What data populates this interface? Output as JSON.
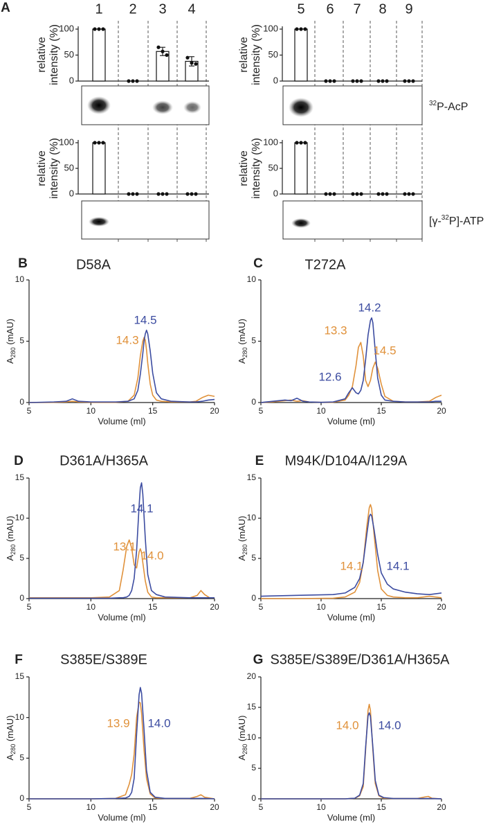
{
  "chart_data": [
    {
      "type": "bar",
      "panel": "A",
      "categories": [
        "1",
        "2",
        "3",
        "4"
      ],
      "values": [
        100,
        0,
        57,
        38
      ],
      "errors": [
        0,
        0,
        8,
        9
      ],
      "replicates": [
        [
          100,
          100,
          100
        ],
        [
          0,
          0,
          0
        ],
        [
          65,
          57,
          50
        ],
        [
          45,
          35,
          33
        ]
      ],
      "ylabel": [
        "relative",
        "intensity (%)"
      ],
      "ylim": [
        0,
        100
      ],
      "yticks": [
        0,
        50,
        100
      ]
    },
    {
      "type": "bar",
      "categories": [
        "5",
        "6",
        "7",
        "8",
        "9"
      ],
      "values": [
        100,
        0,
        0,
        0,
        0
      ],
      "replicates": [
        [
          100,
          100,
          100
        ],
        [
          0,
          0,
          0
        ],
        [
          0,
          0,
          0
        ],
        [
          0,
          0,
          0
        ],
        [
          0,
          0,
          0
        ]
      ],
      "ylabel": [
        "relative",
        "intensity (%)"
      ],
      "ylim": [
        0,
        100
      ],
      "yticks": [
        0,
        50,
        100
      ],
      "gel_label": {
        "sup": "32",
        "post": "P-AcP"
      }
    },
    {
      "type": "bar",
      "categories": [
        null,
        null,
        null,
        null
      ],
      "values": [
        100,
        0,
        0,
        0
      ],
      "replicates": [
        [
          100,
          100,
          100
        ],
        [
          0,
          0,
          0
        ],
        [
          0,
          0,
          0
        ],
        [
          0,
          0,
          0
        ]
      ],
      "ylabel": [
        "relative",
        "intensity (%)"
      ],
      "ylim": [
        0,
        100
      ],
      "yticks": [
        0,
        50,
        100
      ]
    },
    {
      "type": "bar",
      "categories": [
        null,
        null,
        null,
        null,
        null
      ],
      "values": [
        100,
        0,
        0,
        0,
        0
      ],
      "replicates": [
        [
          100,
          100,
          100
        ],
        [
          0,
          0,
          0
        ],
        [
          0,
          0,
          0
        ],
        [
          0,
          0,
          0
        ],
        [
          0,
          0,
          0
        ]
      ],
      "ylabel": [
        "relative",
        "intensity (%)"
      ],
      "ylim": [
        0,
        100
      ],
      "yticks": [
        0,
        50,
        100
      ],
      "gel_label": {
        "pre": "[γ-",
        "sup": "32",
        "post": "P]-ATP"
      }
    },
    {
      "type": "line",
      "panel": "B",
      "title": "D58A",
      "xlabel": "Volume (ml)",
      "ylabel": {
        "main": "A",
        "sub": "280",
        "rest": " (mAU)"
      },
      "xlim": [
        5,
        20
      ],
      "xticks": [
        5,
        10,
        15,
        20
      ],
      "ylim": [
        0,
        10
      ],
      "yticks": [
        0,
        5,
        10
      ],
      "x": [
        5,
        7,
        8,
        8.5,
        9,
        10,
        12,
        13,
        13.5,
        13.8,
        14,
        14.2,
        14.3,
        14.4,
        14.5,
        14.6,
        14.8,
        15,
        15.3,
        15.7,
        16.5,
        18,
        18.5,
        19,
        19.5,
        20
      ],
      "series": [
        {
          "color": "#e0913a",
          "values": [
            0,
            0.02,
            0.05,
            0.1,
            0.05,
            0.02,
            0.02,
            0.1,
            0.6,
            2.0,
            3.8,
            5.0,
            5.3,
            5.1,
            4.3,
            3.2,
            1.5,
            0.6,
            0.2,
            0.1,
            0.05,
            0.05,
            0.1,
            0.4,
            0.6,
            0.5
          ]
        },
        {
          "color": "#3b4ba0",
          "values": [
            0,
            0.05,
            0.1,
            0.3,
            0.1,
            0.05,
            0.05,
            0.1,
            0.3,
            1.0,
            2.3,
            4.0,
            5.0,
            5.6,
            5.9,
            5.6,
            4.2,
            2.4,
            0.8,
            0.3,
            0.1,
            0.05,
            0.05,
            0.1,
            0.2,
            0.25
          ]
        }
      ],
      "annotations": [
        {
          "text": "14.3",
          "color": "#e0913a"
        },
        {
          "text": "14.5",
          "color": "#3b4ba0"
        }
      ]
    },
    {
      "type": "line",
      "panel": "C",
      "title": "T272A",
      "xlabel": "Volume (ml)",
      "ylabel": {
        "main": "A",
        "sub": "280",
        "rest": " (mAU)"
      },
      "xlim": [
        5,
        20
      ],
      "xticks": [
        5,
        10,
        15,
        20
      ],
      "ylim": [
        0,
        10
      ],
      "yticks": [
        0,
        5,
        10
      ],
      "x": [
        5,
        6,
        7,
        7.5,
        8,
        8.5,
        9,
        10,
        11,
        12,
        12.3,
        12.6,
        12.9,
        13.1,
        13.3,
        13.5,
        13.7,
        13.9,
        14.1,
        14.2,
        14.3,
        14.5,
        14.7,
        15,
        15.3,
        16,
        17,
        18,
        19,
        19.5,
        20
      ],
      "series": [
        {
          "color": "#e0913a",
          "values": [
            0,
            0.05,
            0.15,
            0.2,
            0.1,
            0.15,
            0.05,
            0.02,
            0.02,
            0.2,
            0.6,
            1.3,
            3.0,
            4.5,
            4.9,
            3.8,
            1.8,
            1.3,
            1.8,
            2.3,
            2.8,
            3.3,
            2.8,
            1.5,
            0.5,
            0.1,
            0.05,
            0.05,
            0.1,
            0.4,
            0.6
          ]
        },
        {
          "color": "#3b4ba0",
          "values": [
            0,
            0.1,
            0.2,
            0.15,
            0.35,
            0.1,
            0.05,
            0.02,
            0.05,
            0.3,
            0.8,
            1.2,
            0.8,
            0.7,
            1.0,
            1.8,
            3.5,
            5.5,
            6.7,
            6.9,
            6.5,
            4.2,
            2.0,
            0.6,
            0.2,
            0.1,
            0.05,
            0.05,
            0.05,
            0.1,
            0.1
          ]
        }
      ],
      "annotations": [
        {
          "text": "14.2",
          "color": "#3b4ba0"
        },
        {
          "text": "13.3",
          "color": "#e0913a"
        },
        {
          "text": "14.5",
          "color": "#e0913a"
        },
        {
          "text": "12.6",
          "color": "#3b4ba0"
        }
      ]
    },
    {
      "type": "line",
      "panel": "D",
      "title": "D361A/H365A",
      "xlabel": "Volume (ml)",
      "ylabel": {
        "main": "A",
        "sub": "280",
        "rest": " (mAU)"
      },
      "xlim": [
        5,
        20
      ],
      "xticks": [
        5,
        10,
        15,
        20
      ],
      "ylim": [
        0,
        15
      ],
      "yticks": [
        0,
        5,
        10,
        15
      ],
      "x": [
        5,
        10,
        11.5,
        12.3,
        12.6,
        12.9,
        13.1,
        13.3,
        13.5,
        13.7,
        13.9,
        14.0,
        14.1,
        14.2,
        14.4,
        14.6,
        14.9,
        15.3,
        16,
        18,
        18.6,
        18.9,
        19.2,
        19.6,
        20
      ],
      "series": [
        {
          "color": "#e0913a",
          "values": [
            0.1,
            0.1,
            0.2,
            1.0,
            3.5,
            6.5,
            7.3,
            6.3,
            4.2,
            3.8,
            5.8,
            6.2,
            5.7,
            4.5,
            2.2,
            0.8,
            0.2,
            0.1,
            0.1,
            0.1,
            0.4,
            1.0,
            0.5,
            0.1,
            0.1
          ]
        },
        {
          "color": "#3b4ba0",
          "values": [
            0.05,
            0.05,
            0.05,
            0.1,
            0.1,
            0.2,
            0.4,
            1.0,
            2.5,
            6.0,
            11.5,
            13.8,
            14.4,
            13.0,
            7.5,
            3.0,
            1.0,
            0.5,
            0.2,
            0.1,
            0.1,
            0.1,
            0.1,
            0.1,
            0.1
          ]
        }
      ],
      "annotations": [
        {
          "text": "14.1",
          "color": "#3b4ba0"
        },
        {
          "text": "13.1",
          "color": "#e0913a"
        },
        {
          "text": "14.0",
          "color": "#e0913a"
        }
      ]
    },
    {
      "type": "line",
      "panel": "E",
      "title": "M94K/D104A/I129A",
      "xlabel": "Volume (ml)",
      "ylabel": {
        "main": "A",
        "sub": "280",
        "rest": " (mAU)"
      },
      "xlim": [
        5,
        20
      ],
      "xticks": [
        5,
        10,
        15,
        20
      ],
      "ylim": [
        0,
        15
      ],
      "yticks": [
        0,
        5,
        10,
        15
      ],
      "x": [
        5,
        8,
        11,
        12,
        12.8,
        13.2,
        13.5,
        13.8,
        14.0,
        14.1,
        14.2,
        14.4,
        14.7,
        15,
        15.5,
        16,
        17,
        18,
        19,
        20
      ],
      "series": [
        {
          "color": "#e0913a",
          "values": [
            0,
            0,
            0.05,
            0.2,
            0.8,
            2.0,
            4.5,
            9.0,
            11.3,
            11.7,
            11.2,
            8.0,
            3.5,
            1.2,
            0.4,
            0.2,
            0.1,
            0.1,
            0.3,
            0.1
          ]
        },
        {
          "color": "#3b4ba0",
          "values": [
            0.3,
            0.4,
            0.5,
            0.7,
            1.4,
            2.5,
            4.5,
            8.0,
            10.2,
            10.5,
            10.3,
            8.6,
            5.5,
            3.2,
            1.8,
            1.2,
            0.8,
            0.6,
            0.5,
            0.7
          ]
        }
      ],
      "annotations": [
        {
          "text": "14.1",
          "color": "#e0913a"
        },
        {
          "text": "14.1",
          "color": "#3b4ba0"
        }
      ]
    },
    {
      "type": "line",
      "panel": "F",
      "title": "S385E/S389E",
      "xlabel": "Volume (ml)",
      "ylabel": {
        "main": "A",
        "sub": "280",
        "rest": " (mAU)"
      },
      "xlim": [
        5,
        20
      ],
      "xticks": [
        5,
        10,
        15,
        20
      ],
      "ylim": [
        0,
        15
      ],
      "yticks": [
        0,
        5,
        10,
        15
      ],
      "x": [
        5,
        10,
        12,
        12.8,
        13.1,
        13.3,
        13.5,
        13.7,
        13.9,
        14.0,
        14.1,
        14.3,
        14.5,
        14.8,
        15.2,
        16,
        18,
        18.6,
        18.9,
        19.2,
        20
      ],
      "series": [
        {
          "color": "#e0913a",
          "values": [
            0,
            0,
            0.05,
            0.5,
            1.8,
            3.0,
            5.5,
            10.0,
            11.9,
            11.8,
            10.5,
            6.0,
            2.5,
            0.6,
            0.1,
            0.05,
            0.05,
            0.3,
            0.5,
            0.2,
            0
          ]
        },
        {
          "color": "#3b4ba0",
          "values": [
            0,
            0,
            0.05,
            0.1,
            0.3,
            0.8,
            2.5,
            8.0,
            12.8,
            13.7,
            13.0,
            8.5,
            3.5,
            0.8,
            0.2,
            0.05,
            0.05,
            0.05,
            0.05,
            0.05,
            0
          ]
        }
      ],
      "annotations": [
        {
          "text": "13.9",
          "color": "#e0913a"
        },
        {
          "text": "14.0",
          "color": "#3b4ba0"
        }
      ]
    },
    {
      "type": "line",
      "panel": "G",
      "title": "S385E/S389E/D361A/H365A",
      "xlabel": "Volume (ml)",
      "ylabel": {
        "main": "A",
        "sub": "280",
        "rest": " (mAU)"
      },
      "xlim": [
        5,
        20
      ],
      "xticks": [
        5,
        10,
        15,
        20
      ],
      "ylim": [
        0,
        20
      ],
      "yticks": [
        0,
        5,
        10,
        15,
        20
      ],
      "x": [
        5,
        10,
        12,
        12.8,
        13.2,
        13.5,
        13.7,
        13.9,
        14.0,
        14.1,
        14.3,
        14.5,
        14.8,
        15.2,
        16,
        18,
        18.6,
        18.9,
        19.2,
        20
      ],
      "series": [
        {
          "color": "#e0913a",
          "values": [
            0,
            0,
            0,
            0.1,
            0.5,
            2.0,
            8.0,
            14.5,
            15.5,
            14.5,
            8.0,
            2.5,
            0.5,
            0.1,
            0.05,
            0.05,
            0.3,
            0.4,
            0.1,
            0
          ]
        },
        {
          "color": "#3b4ba0",
          "values": [
            0,
            0,
            0,
            0.1,
            0.6,
            2.5,
            8.5,
            13.6,
            14.1,
            13.5,
            8.5,
            3.0,
            0.6,
            0.2,
            0.05,
            0.05,
            0.05,
            0.05,
            0.05,
            0
          ]
        }
      ],
      "annotations": [
        {
          "text": "14.0",
          "color": "#e0913a"
        },
        {
          "text": "14.0",
          "color": "#3b4ba0"
        }
      ]
    }
  ]
}
